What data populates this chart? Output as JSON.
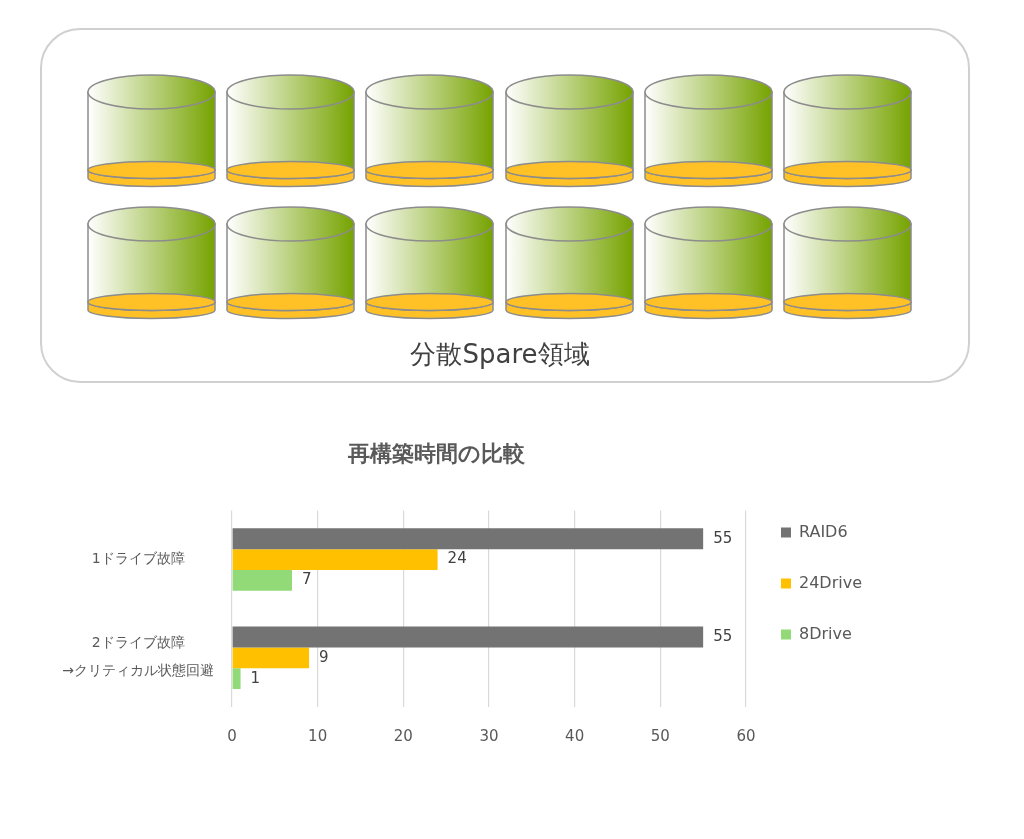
{
  "chart_data": {
    "type": "bar",
    "orientation": "horizontal",
    "title": "再構築時間の比較",
    "categories": [
      "1ドライブ故障",
      "2ドライブ故障\n→クリティカル状態回避"
    ],
    "series": [
      {
        "name": "RAID6",
        "color": "#737373",
        "values": [
          55,
          55
        ]
      },
      {
        "name": "24Drive",
        "color": "#ffc000",
        "values": [
          24,
          9
        ]
      },
      {
        "name": "8Drive",
        "color": "#92d978",
        "values": [
          7,
          1
        ]
      }
    ],
    "xlim": [
      0,
      60
    ],
    "xticks": [
      0,
      10,
      20,
      30,
      40,
      50,
      60
    ],
    "grid": "x",
    "legend": "right",
    "data_labels": true,
    "annotations": [
      "分散Spare領域"
    ]
  }
}
